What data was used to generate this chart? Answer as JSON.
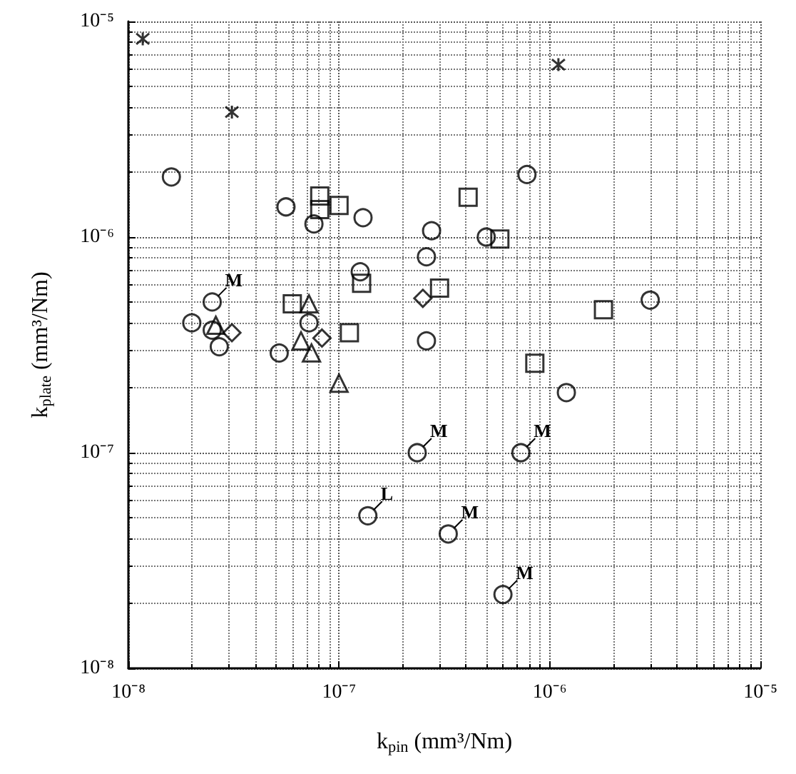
{
  "chart_data": {
    "type": "scatter",
    "xlabel": "k$_{pin}$ (mm³/Nm)",
    "ylabel": "k$_{plate}$ (mm³/Nm)",
    "log": "xy",
    "grid": true,
    "xlim": [
      1e-08,
      1e-05
    ],
    "ylim": [
      1e-08,
      1e-05
    ],
    "xticks": [
      {
        "value": 1e-08,
        "label": "10⁻⁸"
      },
      {
        "value": 1e-07,
        "label": "10⁻⁷"
      },
      {
        "value": 1e-06,
        "label": "10⁻⁶"
      },
      {
        "value": 1e-05,
        "label": "10⁻⁵"
      }
    ],
    "yticks": [
      {
        "value": 1e-08,
        "label": "10⁻⁸"
      },
      {
        "value": 1e-07,
        "label": "10⁻⁷"
      },
      {
        "value": 1e-06,
        "label": "10⁻⁶"
      },
      {
        "value": 1e-05,
        "label": "10⁻⁵"
      }
    ],
    "series": [
      {
        "marker": "circle",
        "color": "#000000",
        "x": [
          1.6e-08,
          5.6e-08,
          1.3e-07,
          7.8e-07,
          2.5e-08,
          2e-08,
          7.2e-08,
          1.37e-07,
          7.6e-08,
          2.75e-07,
          2.6e-07,
          5e-07,
          2.6e-07,
          1.26e-07,
          5.2e-08,
          2.35e-07,
          3.3e-07,
          6e-07,
          7.3e-07,
          1.2e-06,
          3e-06,
          2.5e-08,
          2.7e-08
        ],
        "values": [
          1.9e-06,
          1.38e-06,
          1.23e-06,
          1.95e-06,
          5e-07,
          4e-07,
          4e-07,
          5.1e-08,
          1.15e-06,
          1.07e-06,
          8.1e-07,
          1e-06,
          3.3e-07,
          6.9e-07,
          2.9e-07,
          1e-07,
          4.2e-08,
          2.2e-08,
          1e-07,
          1.9e-07,
          5.1e-07,
          3.7e-07,
          3.1e-07
        ]
      },
      {
        "marker": "square",
        "color": "#000000",
        "x": [
          5.8e-07,
          1.8e-06,
          8.5e-07,
          8.1e-08,
          8.1e-08,
          1e-07,
          4.1e-07,
          1.12e-07,
          3e-07,
          1.28e-07,
          6e-08
        ],
        "values": [
          9.8e-07,
          4.6e-07,
          2.6e-07,
          1.55e-06,
          1.34e-06,
          1.4e-06,
          1.53e-06,
          3.6e-07,
          5.8e-07,
          6.1e-07,
          4.9e-07
        ]
      },
      {
        "marker": "diamond",
        "color": "#000000",
        "x": [
          2.5e-07,
          3.1e-08,
          8.3e-08
        ],
        "values": [
          5.2e-07,
          3.6e-07,
          3.4e-07
        ]
      },
      {
        "marker": "triangle",
        "color": "#000000",
        "x": [
          2.6e-08,
          6.6e-08,
          7.4e-08,
          1e-07,
          7.2e-08
        ],
        "values": [
          3.9e-07,
          3.3e-07,
          2.9e-07,
          2.1e-07,
          4.9e-07
        ]
      },
      {
        "marker": "cross",
        "color": "#000000",
        "x": [
          1.17e-08,
          3.1e-08,
          1.1e-06
        ],
        "values": [
          8.3e-06,
          3.8e-06,
          6.3e-06
        ]
      }
    ],
    "annotations": [
      {
        "text": "M",
        "x": 2.5e-08,
        "y": 5e-07
      },
      {
        "text": "M",
        "x": 2.35e-07,
        "y": 1e-07
      },
      {
        "text": "M",
        "x": 7.3e-07,
        "y": 1e-07
      },
      {
        "text": "M",
        "x": 3.3e-07,
        "y": 4.2e-08
      },
      {
        "text": "M",
        "x": 6e-07,
        "y": 2.2e-08
      },
      {
        "text": "L",
        "x": 1.37e-07,
        "y": 5.1e-08
      }
    ]
  }
}
